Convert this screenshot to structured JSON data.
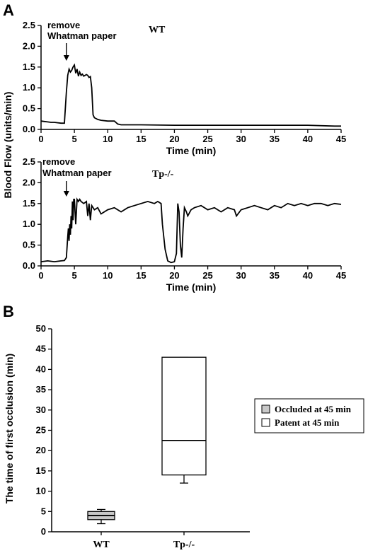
{
  "panels": {
    "a": "A",
    "b": "B"
  },
  "chart_data": [
    {
      "type": "line",
      "panel": "A",
      "genotype_label": "WT",
      "annotation": "remove\nWhatman paper",
      "annotation_x": 3.8,
      "xlabel": "Time (min)",
      "ylabel": "Blood Flow (units/min)",
      "xlim": [
        0,
        45
      ],
      "ylim": [
        0,
        2.5
      ],
      "xticks": [
        0,
        5,
        10,
        15,
        20,
        25,
        30,
        35,
        40,
        45
      ],
      "yticks": [
        0.0,
        0.5,
        1.0,
        1.5,
        2.0,
        2.5
      ],
      "ytick_labels": [
        "0.0",
        "0.5",
        "1.0",
        "1.5",
        "2.0",
        "2.5"
      ],
      "series": [
        {
          "x": [
            0,
            0.5,
            1,
            1.5,
            2,
            2.5,
            3,
            3.5,
            3.8,
            4.0,
            4.2,
            4.4,
            4.6,
            4.8,
            5.0,
            5.2,
            5.4,
            5.6,
            5.8,
            6.0,
            6.2,
            6.4,
            6.6,
            6.8,
            7.0,
            7.2,
            7.4,
            7.6,
            7.8,
            8.0,
            8.5,
            9,
            10,
            11,
            11.5,
            12,
            15,
            20,
            25,
            30,
            35,
            40,
            44,
            45
          ],
          "y": [
            0.2,
            0.19,
            0.18,
            0.17,
            0.17,
            0.16,
            0.15,
            0.15,
            0.9,
            1.3,
            1.45,
            1.38,
            1.42,
            1.5,
            1.55,
            1.35,
            1.45,
            1.28,
            1.38,
            1.3,
            1.33,
            1.28,
            1.3,
            1.32,
            1.3,
            1.25,
            1.27,
            1.0,
            0.35,
            0.28,
            0.24,
            0.22,
            0.2,
            0.2,
            0.13,
            0.11,
            0.11,
            0.1,
            0.1,
            0.1,
            0.1,
            0.1,
            0.08,
            0.08
          ]
        }
      ]
    },
    {
      "type": "line",
      "panel": "A",
      "genotype_label": "Tp-/-",
      "annotation": "remove\nWhatman paper",
      "annotation_x": 3.8,
      "xlabel": "Time (min)",
      "ylabel": "Blood Flow (units/min)",
      "xlim": [
        0,
        45
      ],
      "ylim": [
        0,
        2.5
      ],
      "xticks": [
        0,
        5,
        10,
        15,
        20,
        25,
        30,
        35,
        40,
        45
      ],
      "yticks": [
        0.0,
        0.5,
        1.0,
        1.5,
        2.0,
        2.5
      ],
      "ytick_labels": [
        "0.0",
        "0.5",
        "1.0",
        "1.5",
        "2.0",
        "2.5"
      ],
      "series": [
        {
          "x": [
            0,
            1,
            2,
            3,
            3.5,
            3.8,
            4.0,
            4.1,
            4.2,
            4.3,
            4.4,
            4.5,
            4.6,
            4.7,
            4.8,
            4.9,
            5.0,
            5.2,
            5.4,
            5.6,
            5.8,
            6.0,
            6.4,
            6.8,
            7.0,
            7.2,
            7.4,
            7.6,
            8.0,
            8.5,
            9,
            10,
            11,
            12,
            13,
            14,
            15,
            16,
            17,
            17.5,
            18.0,
            18.2,
            18.6,
            19.0,
            19.5,
            20.0,
            20.3,
            20.5,
            20.7,
            20.9,
            21.1,
            21.3,
            21.5,
            21.8,
            22.0,
            22.5,
            23,
            24,
            25,
            26,
            27,
            28,
            29,
            29.3,
            30,
            31,
            32,
            33,
            34,
            35,
            36,
            37,
            38,
            39,
            40,
            41,
            42,
            43,
            44,
            45
          ],
          "y": [
            0.1,
            0.12,
            0.1,
            0.12,
            0.13,
            0.2,
            0.7,
            0.9,
            0.6,
            1.0,
            0.75,
            1.2,
            0.9,
            1.55,
            1.1,
            1.6,
            1.6,
            1.0,
            1.6,
            1.55,
            1.6,
            1.55,
            1.5,
            1.55,
            1.2,
            1.5,
            1.1,
            1.45,
            1.35,
            1.4,
            1.25,
            1.35,
            1.4,
            1.3,
            1.4,
            1.45,
            1.5,
            1.55,
            1.5,
            1.55,
            1.5,
            1.0,
            0.4,
            0.12,
            0.08,
            0.1,
            0.3,
            1.5,
            1.3,
            0.5,
            0.2,
            0.9,
            1.4,
            1.3,
            1.2,
            1.35,
            1.4,
            1.45,
            1.35,
            1.4,
            1.3,
            1.4,
            1.35,
            1.2,
            1.35,
            1.4,
            1.45,
            1.4,
            1.35,
            1.45,
            1.4,
            1.5,
            1.45,
            1.5,
            1.45,
            1.5,
            1.5,
            1.45,
            1.5,
            1.48
          ]
        }
      ]
    },
    {
      "type": "box",
      "panel": "B",
      "ylabel": "The time of first occlusion (min)",
      "ylim": [
        0,
        50
      ],
      "yticks": [
        0,
        5,
        10,
        15,
        20,
        25,
        30,
        35,
        40,
        45,
        50
      ],
      "categories": [
        "WT",
        "Tp-/-"
      ],
      "boxes": [
        {
          "category": "WT",
          "whisker_low": 2.0,
          "q1": 3.0,
          "median": 4.0,
          "q3": 5.0,
          "whisker_high": 5.5,
          "fill": "#c8c8c8",
          "status": "Occluded at 45 min"
        },
        {
          "category": "Tp-/-",
          "whisker_low": 12.0,
          "q1": 14.0,
          "median": 22.5,
          "q3": 43.0,
          "whisker_high": 43.0,
          "fill": "#ffffff",
          "status": "Patent at 45 min"
        }
      ],
      "legend": [
        {
          "label": "Occluded at 45 min",
          "color": "#c8c8c8"
        },
        {
          "label": "Patent at 45 min",
          "color": "#ffffff"
        }
      ],
      "legend_position": "right"
    }
  ]
}
